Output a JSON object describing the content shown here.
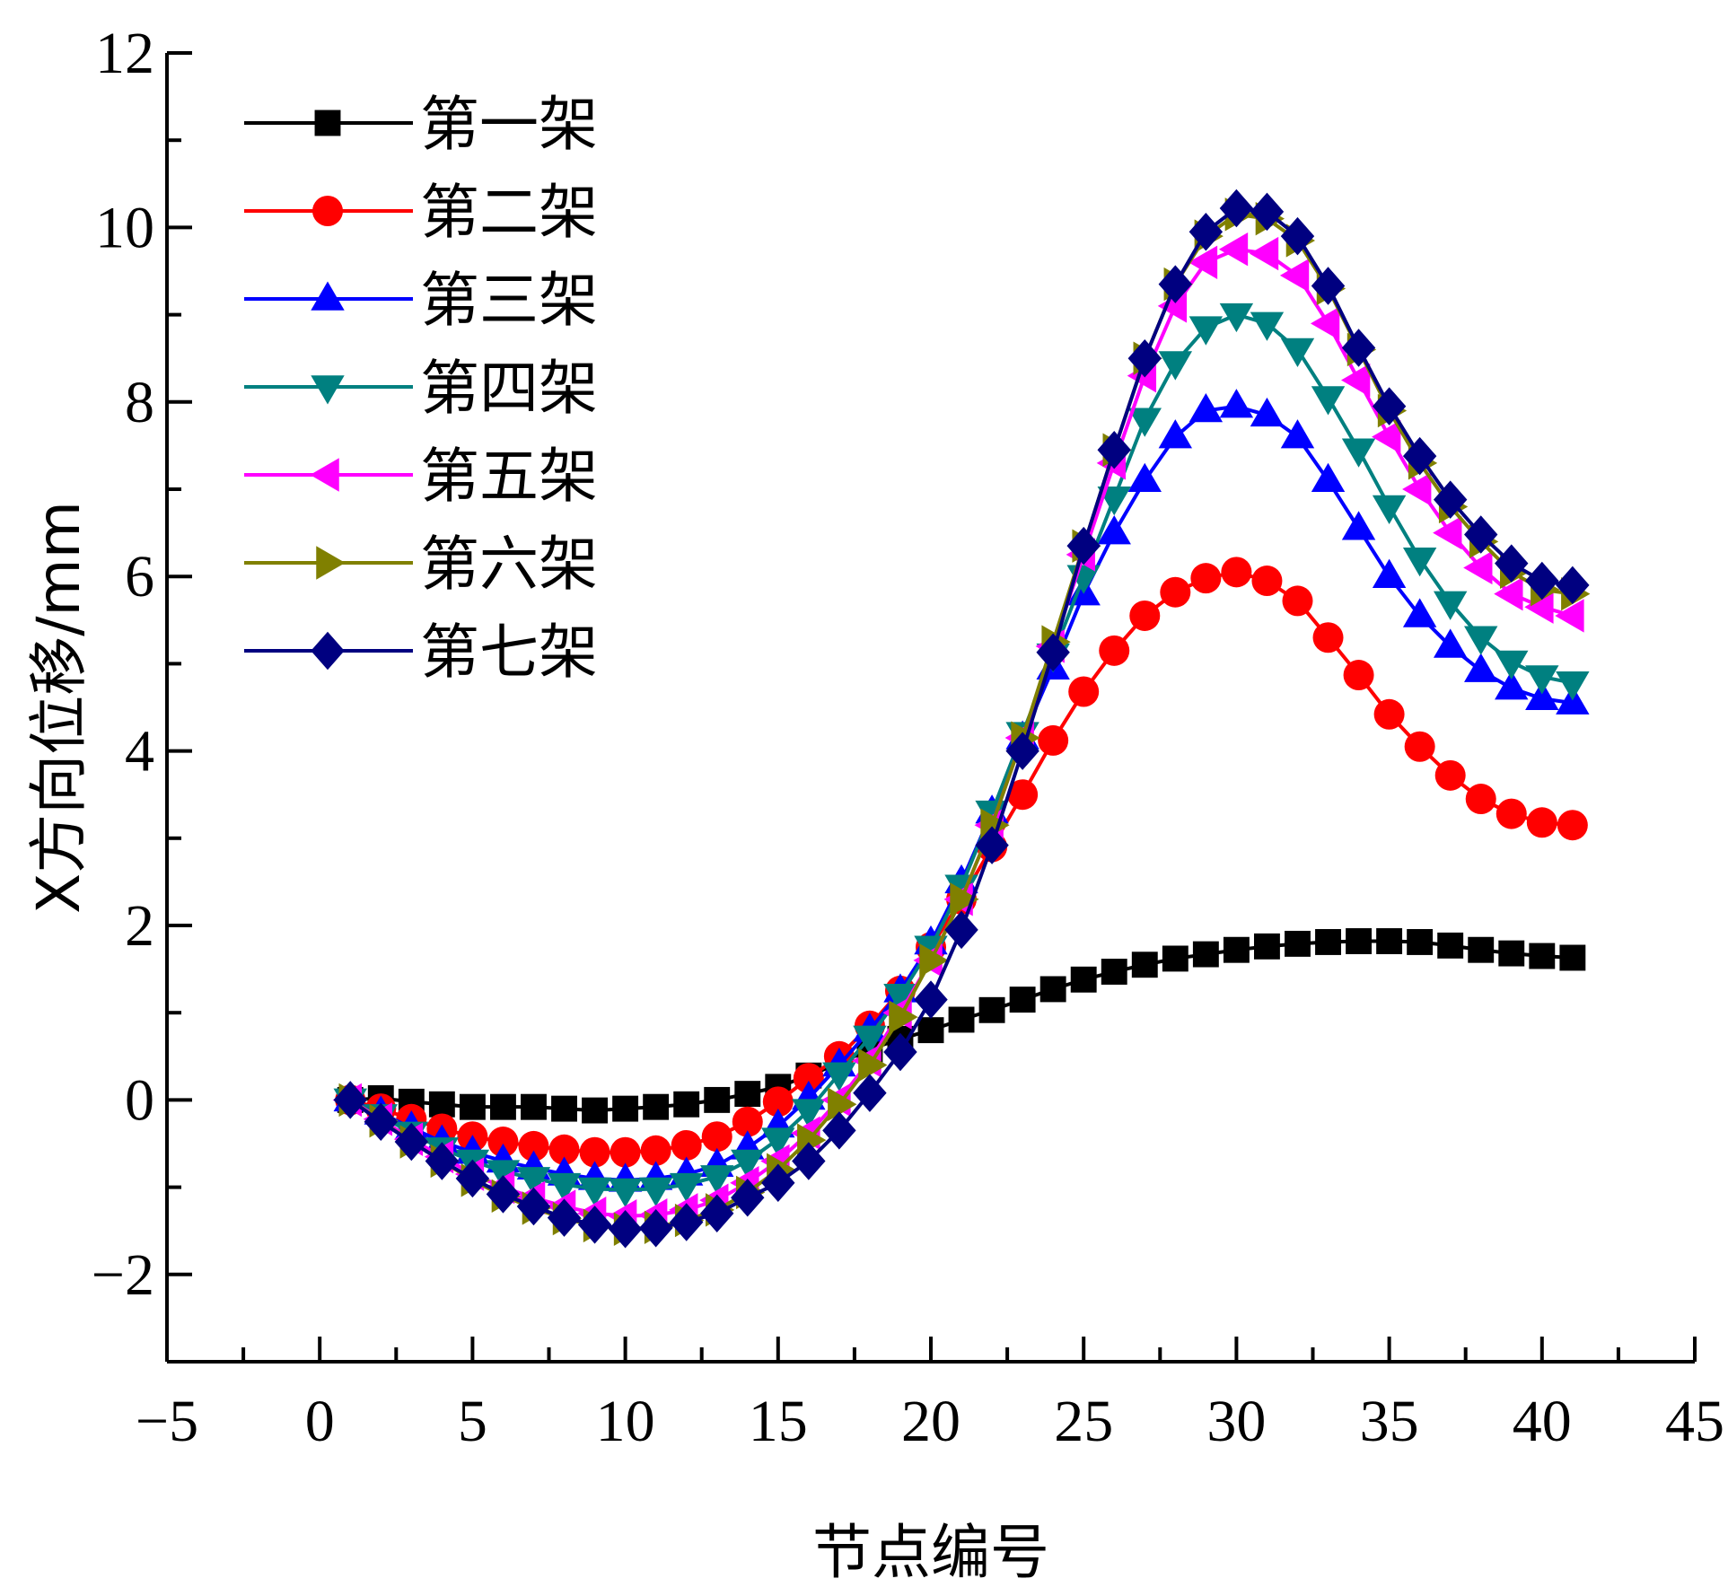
{
  "chart_data": {
    "type": "line",
    "title": "",
    "xlabel": "节点编号",
    "ylabel": "X方向位移/mm",
    "xlim": [
      -5,
      45
    ],
    "ylim": [
      -3,
      12
    ],
    "xticks": [
      -5,
      0,
      5,
      10,
      15,
      20,
      25,
      30,
      35,
      40,
      45
    ],
    "yticks": [
      -2,
      0,
      2,
      4,
      6,
      8,
      10,
      12
    ],
    "xtick_labels": [
      "−5",
      "0",
      "5",
      "10",
      "15",
      "20",
      "25",
      "30",
      "35",
      "40",
      "45"
    ],
    "ytick_labels": [
      "−2",
      "0",
      "2",
      "4",
      "6",
      "8",
      "10",
      "12"
    ],
    "grid": false,
    "legend_position": "top-left",
    "x": [
      1,
      2,
      3,
      4,
      5,
      6,
      7,
      8,
      9,
      10,
      11,
      12,
      13,
      14,
      15,
      16,
      17,
      18,
      19,
      20,
      21,
      22,
      23,
      24,
      25,
      26,
      27,
      28,
      29,
      30,
      31,
      32,
      33,
      34,
      35,
      36,
      37,
      38,
      39,
      40,
      41
    ],
    "series": [
      {
        "name": "第一架",
        "color": "#000000",
        "marker": "square",
        "values": [
          0,
          0.02,
          -0.02,
          -0.05,
          -0.08,
          -0.08,
          -0.08,
          -0.1,
          -0.12,
          -0.1,
          -0.08,
          -0.05,
          0,
          0.07,
          0.15,
          0.28,
          0.42,
          0.58,
          0.7,
          0.8,
          0.92,
          1.03,
          1.15,
          1.27,
          1.38,
          1.47,
          1.55,
          1.62,
          1.67,
          1.72,
          1.76,
          1.79,
          1.81,
          1.82,
          1.82,
          1.81,
          1.77,
          1.72,
          1.68,
          1.65,
          1.63
        ]
      },
      {
        "name": "第二架",
        "color": "#ff0000",
        "marker": "circle",
        "values": [
          0,
          -0.1,
          -0.22,
          -0.33,
          -0.42,
          -0.48,
          -0.53,
          -0.57,
          -0.6,
          -0.6,
          -0.58,
          -0.52,
          -0.42,
          -0.25,
          -0.02,
          0.25,
          0.5,
          0.85,
          1.25,
          1.75,
          2.3,
          2.9,
          3.5,
          4.12,
          4.68,
          5.15,
          5.55,
          5.82,
          5.98,
          6.05,
          5.95,
          5.72,
          5.3,
          4.87,
          4.42,
          4.05,
          3.72,
          3.45,
          3.28,
          3.18,
          3.15
        ]
      },
      {
        "name": "第三架",
        "color": "#0000ff",
        "marker": "triangle-up",
        "values": [
          0,
          -0.15,
          -0.32,
          -0.48,
          -0.6,
          -0.7,
          -0.78,
          -0.85,
          -0.9,
          -0.92,
          -0.9,
          -0.85,
          -0.75,
          -0.55,
          -0.3,
          0.02,
          0.4,
          0.8,
          1.25,
          1.8,
          2.5,
          3.3,
          4.15,
          4.95,
          5.8,
          6.5,
          7.1,
          7.6,
          7.9,
          7.95,
          7.85,
          7.6,
          7.1,
          6.55,
          6.0,
          5.55,
          5.2,
          4.92,
          4.72,
          4.6,
          4.55
        ]
      },
      {
        "name": "第四架",
        "color": "#008080",
        "marker": "triangle-down",
        "values": [
          0,
          -0.18,
          -0.38,
          -0.56,
          -0.7,
          -0.82,
          -0.9,
          -0.97,
          -1.02,
          -1.03,
          -1.02,
          -0.97,
          -0.88,
          -0.7,
          -0.45,
          -0.12,
          0.3,
          0.72,
          1.2,
          1.75,
          2.45,
          3.3,
          4.2,
          5.1,
          6.0,
          6.9,
          7.8,
          8.45,
          8.85,
          9.0,
          8.9,
          8.6,
          8.05,
          7.45,
          6.8,
          6.2,
          5.7,
          5.3,
          5.02,
          4.85,
          4.78
        ]
      },
      {
        "name": "第五架",
        "color": "#ff00ff",
        "marker": "triangle-left",
        "values": [
          0,
          -0.22,
          -0.45,
          -0.65,
          -0.85,
          -1.0,
          -1.12,
          -1.22,
          -1.3,
          -1.33,
          -1.32,
          -1.26,
          -1.15,
          -0.95,
          -0.7,
          -0.38,
          0.0,
          0.45,
          1.0,
          1.6,
          2.3,
          3.15,
          4.15,
          5.2,
          6.25,
          7.3,
          8.3,
          9.1,
          9.6,
          9.75,
          9.7,
          9.45,
          8.9,
          8.25,
          7.6,
          7.0,
          6.5,
          6.1,
          5.8,
          5.65,
          5.55
        ]
      },
      {
        "name": "第六架",
        "color": "#808000",
        "marker": "triangle-right",
        "values": [
          0,
          -0.24,
          -0.48,
          -0.7,
          -0.92,
          -1.1,
          -1.24,
          -1.36,
          -1.44,
          -1.48,
          -1.46,
          -1.38,
          -1.26,
          -1.06,
          -0.8,
          -0.46,
          -0.05,
          0.4,
          0.95,
          1.6,
          2.3,
          3.15,
          4.15,
          5.25,
          6.35,
          7.45,
          8.5,
          9.35,
          9.9,
          10.15,
          10.1,
          9.85,
          9.3,
          8.6,
          7.9,
          7.3,
          6.8,
          6.4,
          6.05,
          5.85,
          5.8
        ]
      },
      {
        "name": "第七架",
        "color": "#000080",
        "marker": "diamond",
        "values": [
          0,
          -0.25,
          -0.48,
          -0.7,
          -0.9,
          -1.08,
          -1.22,
          -1.35,
          -1.43,
          -1.48,
          -1.47,
          -1.4,
          -1.3,
          -1.12,
          -0.95,
          -0.7,
          -0.35,
          0.08,
          0.55,
          1.15,
          1.95,
          2.92,
          4.0,
          5.13,
          6.35,
          7.45,
          8.5,
          9.35,
          9.95,
          10.22,
          10.18,
          9.9,
          9.33,
          8.62,
          7.95,
          7.38,
          6.88,
          6.48,
          6.15,
          5.95,
          5.9
        ]
      }
    ]
  }
}
